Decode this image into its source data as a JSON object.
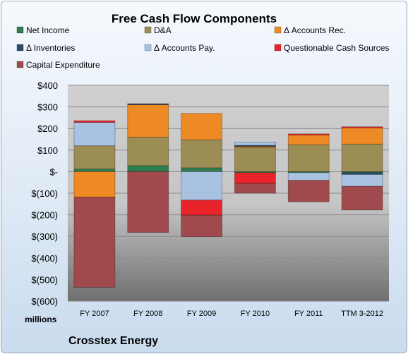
{
  "chart_data": {
    "type": "bar",
    "stacked": true,
    "title": "Free Cash Flow Components",
    "unit_label": "millions",
    "company": "Crosstex Energy",
    "categories": [
      "FY 2007",
      "FY 2008",
      "FY 2009",
      "FY 2010",
      "FY 2011",
      "TTM 3-2012"
    ],
    "ylim": [
      -600,
      400
    ],
    "y_ticks": [
      {
        "value": 400,
        "label": "$400"
      },
      {
        "value": 300,
        "label": "$300"
      },
      {
        "value": 200,
        "label": "$200"
      },
      {
        "value": 100,
        "label": "$100"
      },
      {
        "value": 0,
        "label": "$-"
      },
      {
        "value": -100,
        "label": "$(100)"
      },
      {
        "value": -200,
        "label": "$(200)"
      },
      {
        "value": -300,
        "label": "$(300)"
      },
      {
        "value": -400,
        "label": "$(400)"
      },
      {
        "value": -500,
        "label": "$(500)"
      },
      {
        "value": -600,
        "label": "$(600)"
      }
    ],
    "grid": true,
    "legend_position": "top",
    "series": [
      {
        "name": "Net Income",
        "color": "#2e7d4f",
        "values": [
          12,
          28,
          18,
          -5,
          -5,
          -5
        ]
      },
      {
        "name": "D&A",
        "color": "#9c8d55",
        "values": [
          108,
          132,
          130,
          112,
          125,
          128
        ]
      },
      {
        "name": "Δ Accounts Rec.",
        "color": "#ee8a26",
        "values": [
          -118,
          150,
          122,
          5,
          45,
          75
        ]
      },
      {
        "name": "Δ Inventories",
        "color": "#2a4a6e",
        "values": [
          0,
          5,
          0,
          5,
          0,
          -8
        ]
      },
      {
        "name": "Δ Accounts Pay.",
        "color": "#a9c2e2",
        "values": [
          108,
          0,
          -132,
          15,
          -35,
          -55
        ]
      },
      {
        "name": "Questionable Cash Sources",
        "color": "#e8232a",
        "values": [
          8,
          0,
          -70,
          -50,
          5,
          5
        ]
      },
      {
        "name": "Capital Expenditure",
        "color": "#a04a4e",
        "values": [
          -418,
          -282,
          -100,
          -45,
          -100,
          -110
        ]
      }
    ]
  }
}
